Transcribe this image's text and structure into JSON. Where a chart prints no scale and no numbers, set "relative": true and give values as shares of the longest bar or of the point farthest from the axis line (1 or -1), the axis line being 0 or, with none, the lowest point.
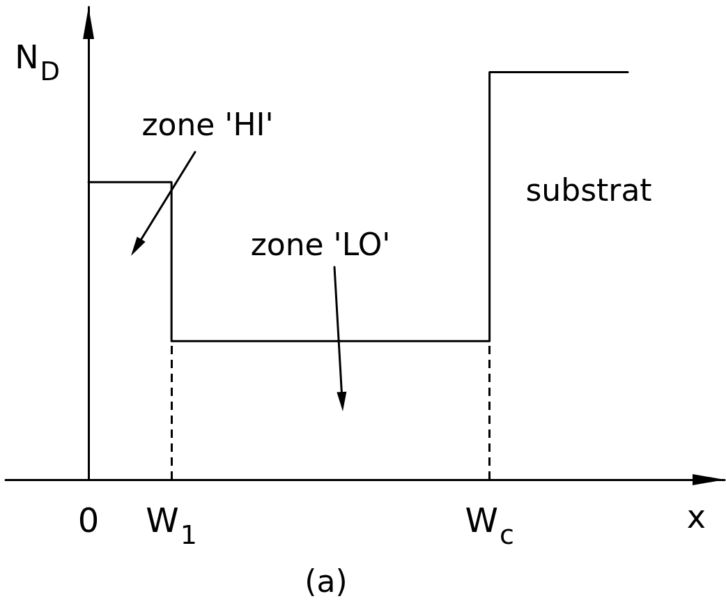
{
  "chart_data": {
    "type": "step",
    "xlabel": "x",
    "ylabel": "N$_{D}$",
    "relative": true,
    "color": "#000000",
    "categories": [
      null,
      null,
      null,
      null,
      null,
      null,
      "0",
      null,
      null,
      null,
      null,
      null,
      "W$_{1}$",
      null,
      null,
      null,
      null,
      null,
      null,
      null,
      null,
      null,
      null,
      null,
      null,
      null,
      null,
      null,
      null,
      null,
      null,
      null,
      null,
      null,
      null,
      "W$_{c}$",
      null,
      null,
      null,
      null,
      null,
      null,
      null,
      null,
      null,
      null,
      null,
      null,
      null,
      null,
      null,
      null,
      null
    ],
    "values": [
      null,
      null,
      null,
      null,
      null,
      null,
      0.73,
      0.73,
      0.73,
      0.73,
      0.73,
      0.73,
      0.34,
      0.34,
      0.34,
      0.34,
      0.34,
      0.34,
      0.34,
      0.34,
      0.34,
      0.34,
      0.34,
      0.34,
      0.34,
      0.34,
      0.34,
      0.34,
      0.34,
      0.34,
      0.34,
      0.34,
      0.34,
      0.34,
      0.34,
      1,
      1,
      1,
      1,
      1,
      1,
      1,
      1,
      1,
      1,
      1,
      null,
      null,
      null,
      null,
      null,
      null,
      null
    ],
    "ref_lines": [
      {
        "axis": "x",
        "value": "W$_{1}$",
        "line_style": "dashed"
      },
      {
        "axis": "x",
        "value": "W$_{c}$",
        "line_style": "dashed"
      }
    ],
    "annotations": [
      "zone 'HI'",
      "zone 'LO'",
      "substrat",
      "(a)"
    ]
  }
}
